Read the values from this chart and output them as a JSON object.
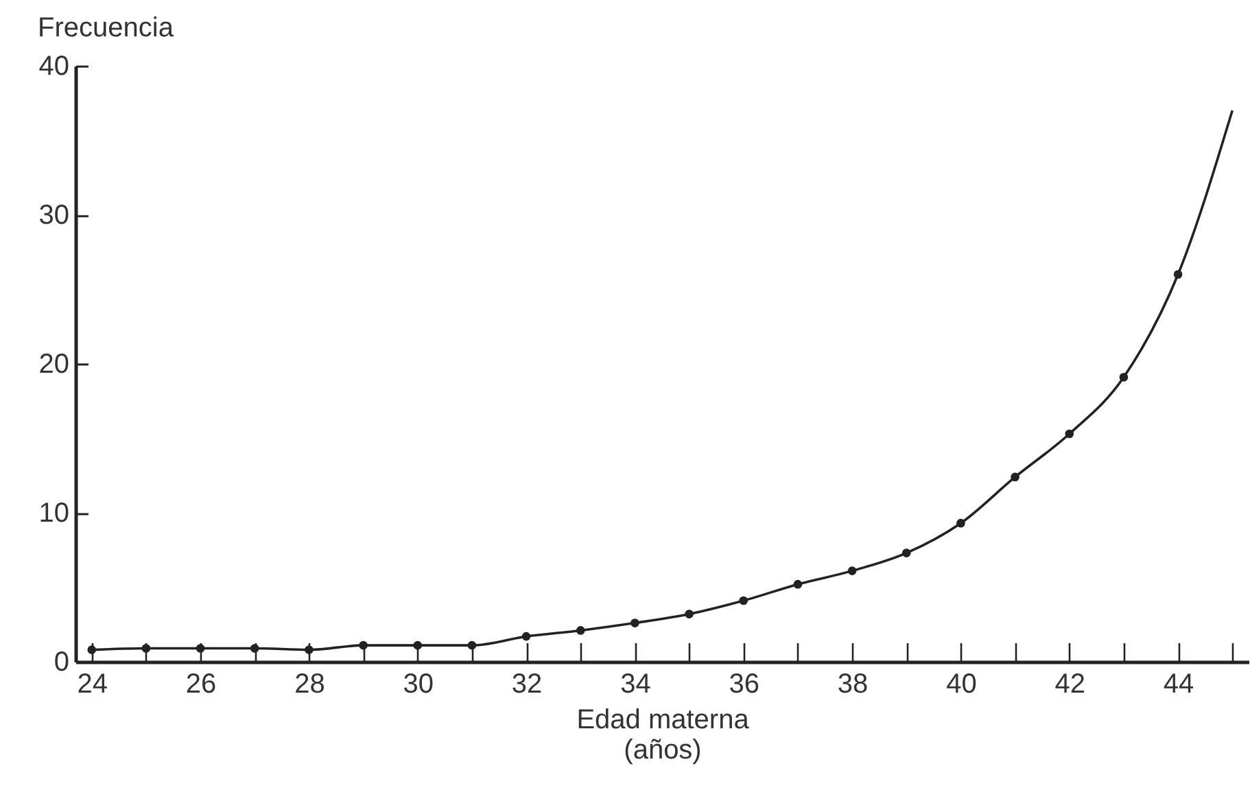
{
  "chart_data": {
    "type": "line",
    "xlabel": "Edad materna\n(años)",
    "ylabel": "Frecuencia",
    "xlim": [
      23.7,
      45.3
    ],
    "ylim": [
      0,
      40
    ],
    "xticks": [
      24,
      {
        "value": 25,
        "label": null
      },
      26,
      {
        "value": 27,
        "label": null
      },
      28,
      {
        "value": 29,
        "label": null
      },
      30,
      {
        "value": 31,
        "label": null
      },
      32,
      {
        "value": 33,
        "label": null
      },
      34,
      {
        "value": 35,
        "label": null
      },
      36,
      {
        "value": 37,
        "label": null
      },
      38,
      {
        "value": 39,
        "label": null
      },
      40,
      {
        "value": 41,
        "label": null
      },
      42,
      {
        "value": 43,
        "label": null
      },
      44,
      {
        "value": 45,
        "label": null
      }
    ],
    "yticks": [
      0,
      10,
      20,
      30,
      40
    ],
    "series": [
      {
        "color": "#222222",
        "marker": "none",
        "x": [
          24,
          25,
          26,
          27,
          28,
          29,
          30,
          31,
          32,
          33,
          34,
          35,
          36,
          37,
          38,
          39,
          40,
          41,
          42,
          43,
          44,
          45
        ],
        "values": [
          0.8,
          0.9,
          0.9,
          0.9,
          0.8,
          1.1,
          1.1,
          1.1,
          1.7,
          2.1,
          2.6,
          3.2,
          4.1,
          5.2,
          6.1,
          7.3,
          9.3,
          12.4,
          15.3,
          19.1,
          26.0,
          37.0
        ]
      },
      {
        "type": "scatter",
        "color": "#222222",
        "marker": "circle",
        "x": [
          24,
          25,
          26,
          27,
          28,
          29,
          30,
          31,
          32,
          33,
          34,
          35,
          36,
          37,
          38,
          39,
          40,
          41,
          42,
          43,
          44
        ],
        "values": [
          0.8,
          0.9,
          0.9,
          0.9,
          0.8,
          1.1,
          1.1,
          1.1,
          1.7,
          2.1,
          2.6,
          3.2,
          4.1,
          5.2,
          6.1,
          7.3,
          9.3,
          12.4,
          15.3,
          19.1,
          26.0
        ]
      }
    ]
  }
}
